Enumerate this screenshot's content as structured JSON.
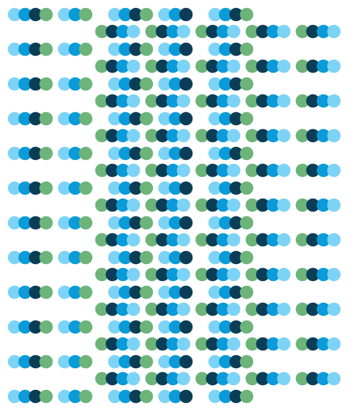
{
  "palette": {
    "background": "#ffffff",
    "light_blue": "#7dd3f5",
    "mid_blue": "#0a9bd8",
    "navy": "#0b3d57",
    "green": "#6cb47a"
  },
  "pattern": {
    "row_a_groups": [
      [
        "light_blue",
        "mid_blue",
        "navy",
        "green"
      ],
      [
        "light_blue",
        "mid_blue",
        "green"
      ],
      [
        "light_blue",
        "mid_blue",
        "navy",
        "green"
      ],
      [
        "light_blue",
        "mid_blue",
        "navy"
      ],
      [
        "light_blue",
        "mid_blue",
        "navy",
        "green"
      ]
    ],
    "row_b_groups": [
      [
        "green",
        "navy",
        "mid_blue",
        "light_blue"
      ],
      [
        "green",
        "navy",
        "mid_blue",
        "light_blue"
      ],
      [
        "green",
        "navy",
        "mid_blue",
        "light_blue"
      ],
      [
        "green",
        "navy",
        "mid_blue",
        "light_blue"
      ],
      [
        "green",
        "navy",
        "mid_blue",
        "light_blue"
      ]
    ],
    "row_count_a": 12,
    "row_count_b": 11
  }
}
